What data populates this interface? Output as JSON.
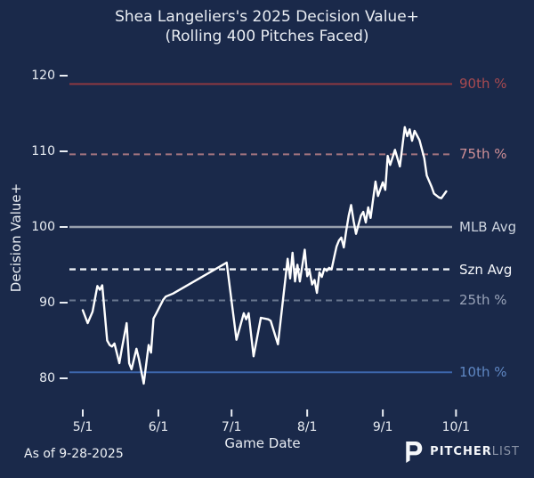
{
  "title": {
    "line1": "Shea Langeliers's 2025 Decision Value+",
    "line2": "(Rolling 400 Pitches Faced)"
  },
  "footer": {
    "as_of": "As of 9-28-2025"
  },
  "brand": {
    "part1": "PITCHER",
    "part2": "LIST",
    "icon": "pitcherlist-p-icon"
  },
  "colors": {
    "background": "#1a294a",
    "series_line": "#ffffff",
    "axis_text": "#e9edf3"
  },
  "chart_data": {
    "type": "line",
    "title": "Shea Langeliers's 2025 Decision Value+ (Rolling 400 Pitches Faced)",
    "xlabel": "Game Date",
    "ylabel": "Decision Value+",
    "x_ticks": [
      "5/1",
      "6/1",
      "7/1",
      "8/1",
      "9/1",
      "10/1"
    ],
    "y_ticks": [
      80,
      90,
      100,
      110,
      120
    ],
    "ylim": [
      76,
      121.5
    ],
    "grid": false,
    "legend_position": "right-edge-labels",
    "ref_lines": [
      {
        "label": "90th %",
        "value": 118.9,
        "style": "solid",
        "line_color": "#8c3942",
        "label_color": "#a84a50"
      },
      {
        "label": "75th %",
        "value": 109.6,
        "style": "dashed",
        "line_color": "#a3747f",
        "label_color": "#cf8f96"
      },
      {
        "label": "MLB Avg",
        "value": 100.0,
        "style": "solid",
        "line_color": "#98a0ad",
        "label_color": "#ccd3de"
      },
      {
        "label": "Szn Avg",
        "value": 94.4,
        "style": "dashed",
        "line_color": "#eef1f6",
        "label_color": "#f4f6fa"
      },
      {
        "label": "25th %",
        "value": 90.3,
        "style": "dashed",
        "line_color": "#69768f",
        "label_color": "#99a3b8"
      },
      {
        "label": "10th %",
        "value": 80.8,
        "style": "solid",
        "line_color": "#3c66ac",
        "label_color": "#5f87c3"
      }
    ],
    "series": [
      {
        "name": "Decision Value+ (rolling 400 pitches)",
        "color": "#ffffff",
        "points": [
          [
            "5/1",
            89.0
          ],
          [
            "5/3",
            87.3
          ],
          [
            "5/5",
            88.8
          ],
          [
            "5/6",
            90.5
          ],
          [
            "5/7",
            92.2
          ],
          [
            "5/8",
            91.7
          ],
          [
            "5/9",
            92.3
          ],
          [
            "5/11",
            85.0
          ],
          [
            "5/12",
            84.4
          ],
          [
            "5/13",
            84.2
          ],
          [
            "5/14",
            84.6
          ],
          [
            "5/16",
            82.0
          ],
          [
            "5/17",
            83.9
          ],
          [
            "5/19",
            87.3
          ],
          [
            "5/20",
            82.0
          ],
          [
            "5/21",
            81.2
          ],
          [
            "5/23",
            83.9
          ],
          [
            "5/24",
            82.6
          ],
          [
            "5/26",
            79.3
          ],
          [
            "5/28",
            84.4
          ],
          [
            "5/29",
            83.4
          ],
          [
            "5/30",
            87.9
          ],
          [
            "5/31",
            88.5
          ],
          [
            "6/3",
            90.4
          ],
          [
            "6/4",
            90.8
          ],
          [
            "6/7",
            91.2
          ],
          [
            "6/29",
            95.3
          ],
          [
            "7/3",
            85.1
          ],
          [
            "7/6",
            88.6
          ],
          [
            "7/7",
            87.8
          ],
          [
            "7/8",
            88.6
          ],
          [
            "7/10",
            82.9
          ],
          [
            "7/13",
            88.0
          ],
          [
            "7/16",
            87.8
          ],
          [
            "7/17",
            87.6
          ],
          [
            "7/20",
            84.5
          ],
          [
            "7/24",
            95.8
          ],
          [
            "7/25",
            93.2
          ],
          [
            "7/26",
            96.6
          ],
          [
            "7/27",
            92.8
          ],
          [
            "7/28",
            95.0
          ],
          [
            "7/29",
            92.8
          ],
          [
            "7/31",
            97.0
          ],
          [
            "8/1",
            93.5
          ],
          [
            "8/2",
            94.2
          ],
          [
            "8/3",
            92.4
          ],
          [
            "8/4",
            93.0
          ],
          [
            "8/5",
            91.3
          ],
          [
            "8/6",
            94.0
          ],
          [
            "8/7",
            93.4
          ],
          [
            "8/8",
            94.5
          ],
          [
            "8/9",
            94.2
          ],
          [
            "8/10",
            94.6
          ],
          [
            "8/11",
            94.4
          ],
          [
            "8/12",
            95.9
          ],
          [
            "8/13",
            97.4
          ],
          [
            "8/14",
            98.2
          ],
          [
            "8/15",
            98.6
          ],
          [
            "8/16",
            97.3
          ],
          [
            "8/17",
            99.5
          ],
          [
            "8/18",
            101.5
          ],
          [
            "8/19",
            102.9
          ],
          [
            "8/20",
            100.8
          ],
          [
            "8/21",
            99.1
          ],
          [
            "8/23",
            101.5
          ],
          [
            "8/24",
            102.0
          ],
          [
            "8/25",
            100.6
          ],
          [
            "8/26",
            102.6
          ],
          [
            "8/27",
            101.2
          ],
          [
            "8/29",
            106.0
          ],
          [
            "8/30",
            104.1
          ],
          [
            "9/1",
            105.9
          ],
          [
            "9/2",
            104.9
          ],
          [
            "9/3",
            109.4
          ],
          [
            "9/4",
            108.2
          ],
          [
            "9/6",
            110.2
          ],
          [
            "9/8",
            108.0
          ],
          [
            "9/10",
            113.2
          ],
          [
            "9/11",
            112.0
          ],
          [
            "9/12",
            112.9
          ],
          [
            "9/13",
            111.4
          ],
          [
            "9/14",
            112.7
          ],
          [
            "9/16",
            111.5
          ],
          [
            "9/18",
            109.1
          ],
          [
            "9/19",
            106.8
          ],
          [
            "9/21",
            105.3
          ],
          [
            "9/22",
            104.4
          ],
          [
            "9/24",
            103.9
          ],
          [
            "9/25",
            103.8
          ],
          [
            "9/27",
            104.7
          ]
        ]
      }
    ]
  }
}
